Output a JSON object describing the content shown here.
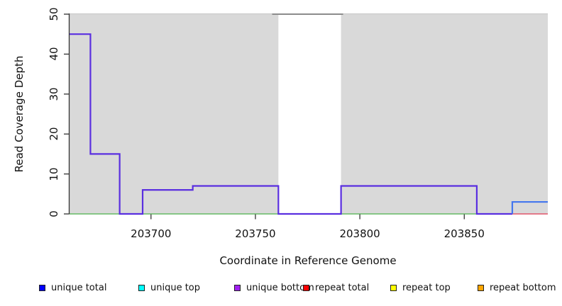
{
  "chart_data": {
    "type": "line",
    "subtype": "step",
    "title": "",
    "xlabel": "Coordinate in Reference Genome",
    "ylabel": "Read Coverage Depth",
    "x_ticks": [
      203700,
      203750,
      203800,
      203850
    ],
    "y_ticks": [
      0,
      10,
      20,
      30,
      40,
      50
    ],
    "x_range": [
      203661,
      203890
    ],
    "y_range": [
      0,
      50
    ],
    "grid": "off",
    "legend_position": "bottom",
    "plot_background_regions": [
      {
        "name": "unique-region-left",
        "x0": 203661,
        "x1": 203761,
        "color": "#d9d9d9"
      },
      {
        "name": "unique-region-right",
        "x0": 203791,
        "x1": 203890,
        "color": "#d9d9d9"
      }
    ],
    "series": [
      {
        "name": "baseline-green",
        "color": "#66bb66",
        "width": 1.6,
        "points": [
          [
            203661,
            0
          ],
          [
            203873,
            0
          ]
        ]
      },
      {
        "name": "repeat-total-baseline",
        "color": "#e0556a",
        "width": 1.6,
        "points": [
          [
            203873,
            0
          ],
          [
            203890,
            0
          ]
        ]
      },
      {
        "name": "clipped-coverage-top",
        "color": "#8c8c8c",
        "width": 2,
        "points": [
          [
            203758,
            50
          ],
          [
            203792,
            50
          ]
        ]
      },
      {
        "name": "unique-coverage-step",
        "color": "#5a2fe0",
        "width": 2.2,
        "points": [
          [
            203661,
            45
          ],
          [
            203671,
            45
          ],
          [
            203671,
            15
          ],
          [
            203685,
            15
          ],
          [
            203685,
            0
          ],
          [
            203696,
            0
          ],
          [
            203696,
            6
          ],
          [
            203720,
            6
          ],
          [
            203720,
            7
          ],
          [
            203761,
            7
          ],
          [
            203761,
            0
          ],
          [
            203791,
            0
          ],
          [
            203791,
            7
          ],
          [
            203856,
            7
          ],
          [
            203856,
            0
          ],
          [
            203873,
            0
          ]
        ]
      },
      {
        "name": "unique-total-right-segment",
        "color": "#4477ee",
        "width": 2.2,
        "points": [
          [
            203873,
            0
          ],
          [
            203873,
            3
          ],
          [
            203890,
            3
          ]
        ]
      }
    ]
  },
  "legend": {
    "items": [
      {
        "label": "unique total",
        "color": "#0000ff"
      },
      {
        "label": "unique top",
        "color": "#00ffff"
      },
      {
        "label": "unique bottom",
        "color": "#a020f0"
      },
      {
        "label": "repeat total",
        "color": "#ff0000"
      },
      {
        "label": "repeat top",
        "color": "#ffff00"
      },
      {
        "label": "repeat bottom",
        "color": "#ffa500"
      }
    ]
  },
  "colors": {
    "plot_band": "#d9d9d9",
    "axis": "#333333",
    "text": "#111111"
  }
}
